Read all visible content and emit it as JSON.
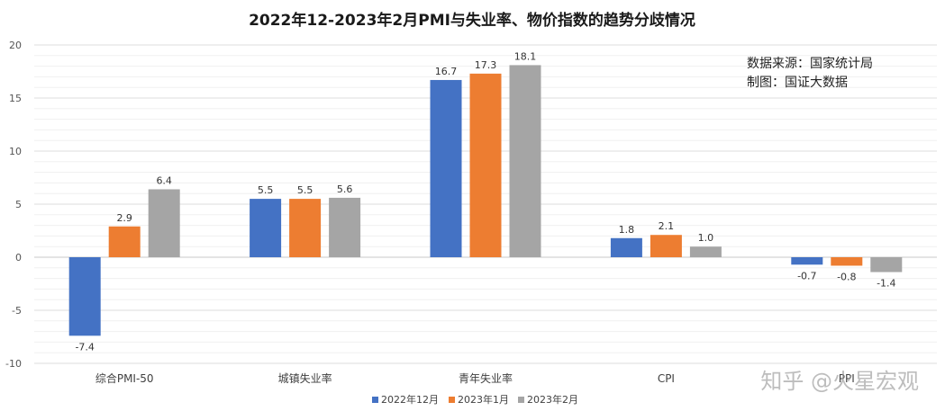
{
  "chart_data": {
    "type": "bar",
    "title": "2022年12-2023年2月PMI与失业率、物价指数的趋势分歧情况",
    "categories": [
      "综合PMI-50",
      "城镇失业率",
      "青年失业率",
      "CPI",
      "PPI"
    ],
    "series": [
      {
        "name": "2022年12月",
        "color": "#4472C4",
        "values": [
          -7.4,
          5.5,
          16.7,
          1.8,
          -0.7
        ]
      },
      {
        "name": "2023年1月",
        "color": "#ED7D31",
        "values": [
          2.9,
          5.5,
          17.3,
          2.1,
          -0.8
        ]
      },
      {
        "name": "2023年2月",
        "color": "#A5A5A5",
        "values": [
          6.4,
          5.6,
          18.1,
          1.0,
          -1.4
        ]
      }
    ],
    "ylim": [
      -10,
      20
    ],
    "yticks": [
      -10,
      -5,
      0,
      5,
      10,
      15,
      20
    ],
    "grid": true,
    "legend": "bottom",
    "xlabel": "",
    "ylabel": ""
  },
  "annotations": {
    "source": "数据来源：国家统计局",
    "author": "制图：国证大数据",
    "watermark": "知乎 @火星宏观"
  }
}
